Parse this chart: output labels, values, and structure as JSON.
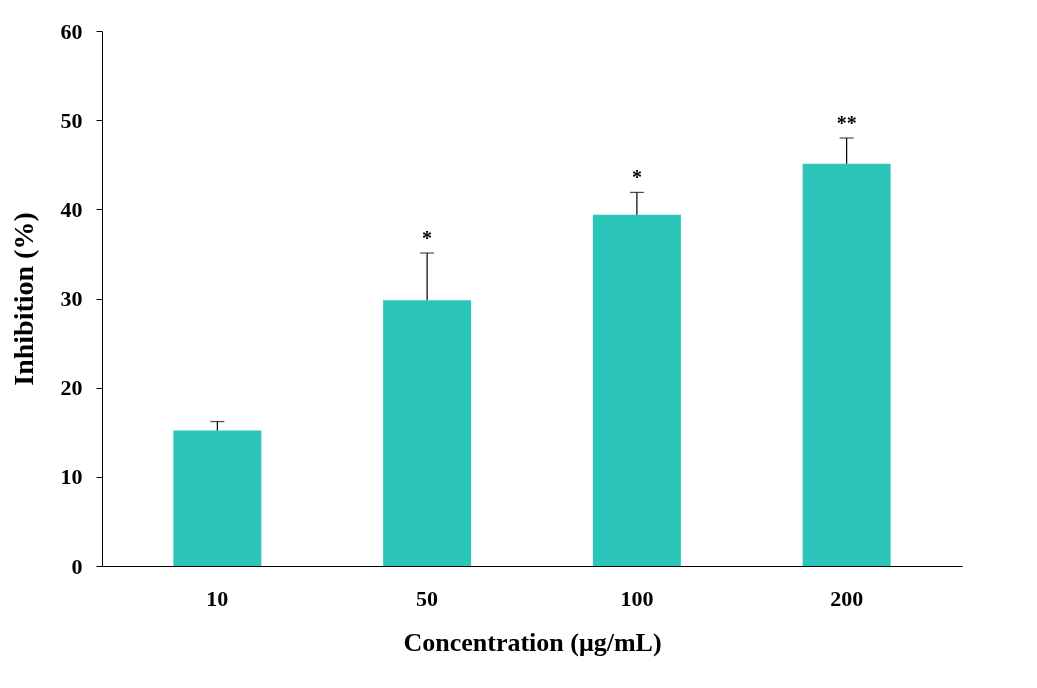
{
  "chart_data": {
    "type": "bar",
    "xlabel": "Concentration (μg/mL)",
    "ylabel": "Inhibition (%)",
    "categories": [
      "10",
      "50",
      "100",
      "200"
    ],
    "values": [
      15.2,
      29.8,
      39.4,
      45.1
    ],
    "errors": [
      [
        15.2,
        16.2
      ],
      [
        29.8,
        35.1
      ],
      [
        39.4,
        41.9
      ],
      [
        45.1,
        48.0
      ]
    ],
    "color": "#2cc5b9",
    "ylim": [
      0,
      60
    ],
    "yticks": [
      0,
      10,
      20,
      30,
      40,
      50,
      60
    ],
    "grid": false,
    "annotations": [
      {
        "text": "*",
        "x": "50",
        "y": 35.1
      },
      {
        "text": "*",
        "x": "100",
        "y": 41.9
      },
      {
        "text": "**",
        "x": "200",
        "y": 48.0
      }
    ]
  }
}
